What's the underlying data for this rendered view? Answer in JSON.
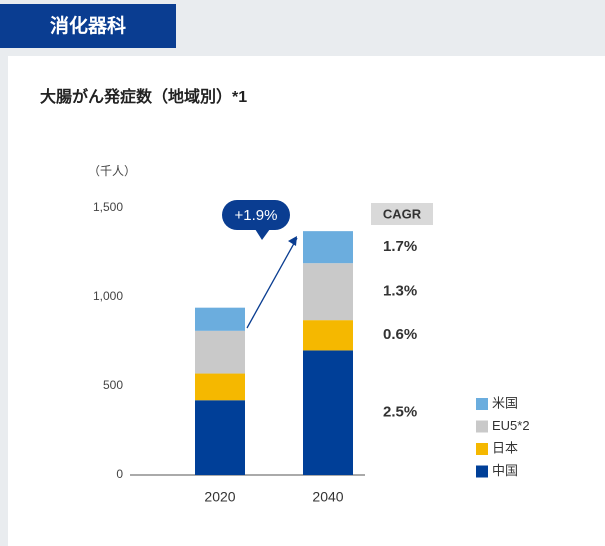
{
  "header": {
    "title": "消化器科"
  },
  "chart_data": {
    "type": "stacked_bar",
    "title": "大腸がん発症数（地域別）*1",
    "y_unit": "（千人）",
    "categories": [
      "2020",
      "2040"
    ],
    "series": [
      {
        "name": "中国",
        "color": "#003f98",
        "values": [
          420,
          700
        ]
      },
      {
        "name": "日本",
        "color": "#f5b800",
        "values": [
          150,
          170
        ]
      },
      {
        "name": "EU5*2",
        "color": "#c9c9c9",
        "values": [
          240,
          320
        ]
      },
      {
        "name": "米国",
        "color": "#6badde",
        "values": [
          130,
          180
        ]
      }
    ],
    "ylim": [
      0,
      1500
    ],
    "yticks": [
      0,
      500,
      {
        "value": 1000,
        "label": "1,000"
      },
      {
        "value": 1500,
        "label": "1,500"
      }
    ],
    "annotation": "+1.9%",
    "cagr": {
      "label": "CAGR",
      "values": [
        "2.5%",
        "0.6%",
        "1.3%",
        "1.7%"
      ]
    }
  }
}
